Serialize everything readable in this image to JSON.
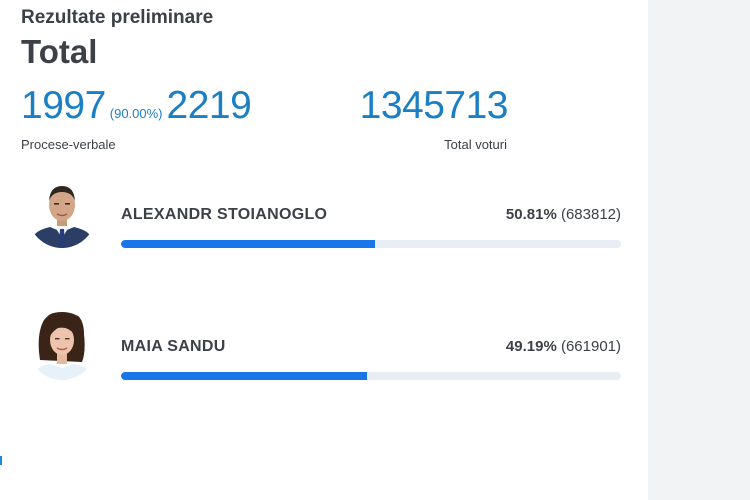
{
  "header": {
    "subtitle": "Rezultate preliminare",
    "title": "Total"
  },
  "stats": {
    "processed": "1997",
    "processed_pct": "(90.00%)",
    "total_protocols": "2219",
    "protocols_label": "Procese-verbale",
    "total_votes": "1345713",
    "votes_label": "Total voturi"
  },
  "candidates": [
    {
      "name": "ALEXANDR STOIANOGLO",
      "percent": "50.81%",
      "votes": "(683812)",
      "share": 50.81,
      "bar_color": "#1976e8"
    },
    {
      "name": "MAIA SANDU",
      "percent": "49.19%",
      "votes": "(661901)",
      "share": 49.19,
      "bar_color": "#1976e8"
    }
  ],
  "colors": {
    "accent": "#1b7fc3",
    "text": "#3c4148",
    "track": "#e9eef4"
  }
}
